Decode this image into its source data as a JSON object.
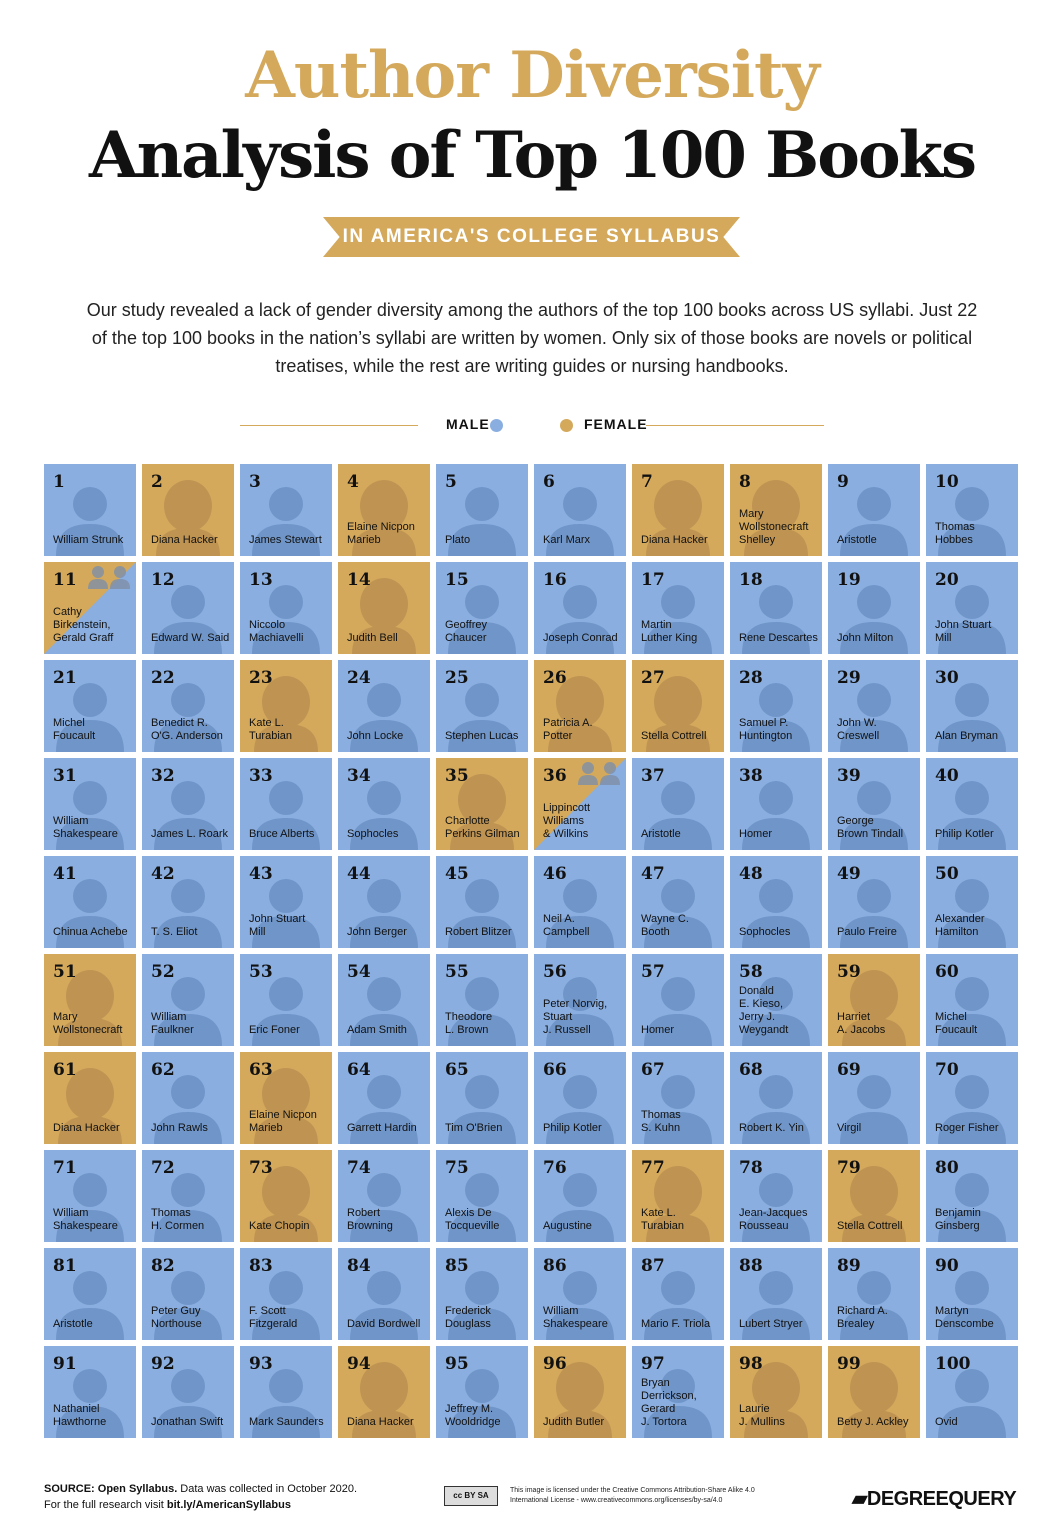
{
  "title_line1": "Author Diversity",
  "title_line2": "Analysis of Top 100 Books",
  "ribbon": "IN AMERICA'S COLLEGE SYLLABUS",
  "intro": "Our study revealed a lack of gender diversity among the authors of the top 100 books across US syllabi. Just 22 of the top 100 books in the nation’s syllabi are written by women. Only six of those books are novels or political treatises, while the rest are writing guides or nursing handbooks.",
  "legend": {
    "male": "MALE",
    "female": "FEMALE"
  },
  "colors": {
    "male": "#8aaee0",
    "female": "#d4a95c",
    "male_sil": "#7096c9",
    "female_sil": "#bf9452"
  },
  "books": [
    {
      "rank": "1",
      "author": "William Strunk",
      "gender": "male"
    },
    {
      "rank": "2",
      "author": "Diana Hacker",
      "gender": "female"
    },
    {
      "rank": "3",
      "author": "James Stewart",
      "gender": "male"
    },
    {
      "rank": "4",
      "author": "Elaine Nicpon\nMarieb",
      "gender": "female"
    },
    {
      "rank": "5",
      "author": "Plato",
      "gender": "male"
    },
    {
      "rank": "6",
      "author": "Karl Marx",
      "gender": "male"
    },
    {
      "rank": "7",
      "author": "Diana Hacker",
      "gender": "female"
    },
    {
      "rank": "8",
      "author": "Mary\nWollstonecraft\nShelley",
      "gender": "female"
    },
    {
      "rank": "9",
      "author": "Aristotle",
      "gender": "male"
    },
    {
      "rank": "10",
      "author": "Thomas\nHobbes",
      "gender": "male"
    },
    {
      "rank": "11",
      "author": "Cathy\nBirkenstein,\nGerald Graff",
      "gender": "mixed"
    },
    {
      "rank": "12",
      "author": "Edward W. Said",
      "gender": "male"
    },
    {
      "rank": "13",
      "author": "Niccolo\nMachiavelli",
      "gender": "male"
    },
    {
      "rank": "14",
      "author": "Judith Bell",
      "gender": "female"
    },
    {
      "rank": "15",
      "author": "Geoffrey\nChaucer",
      "gender": "male"
    },
    {
      "rank": "16",
      "author": "Joseph Conrad",
      "gender": "male"
    },
    {
      "rank": "17",
      "author": "Martin\nLuther King",
      "gender": "male"
    },
    {
      "rank": "18",
      "author": "Rene Descartes",
      "gender": "male"
    },
    {
      "rank": "19",
      "author": "John Milton",
      "gender": "male"
    },
    {
      "rank": "20",
      "author": "John Stuart\nMill",
      "gender": "male"
    },
    {
      "rank": "21",
      "author": "Michel\nFoucault",
      "gender": "male"
    },
    {
      "rank": "22",
      "author": "Benedict R.\nO'G. Anderson",
      "gender": "male"
    },
    {
      "rank": "23",
      "author": "Kate L.\nTurabian",
      "gender": "female"
    },
    {
      "rank": "24",
      "author": "John Locke",
      "gender": "male"
    },
    {
      "rank": "25",
      "author": "Stephen Lucas",
      "gender": "male"
    },
    {
      "rank": "26",
      "author": "Patricia A.\nPotter",
      "gender": "female"
    },
    {
      "rank": "27",
      "author": "Stella Cottrell",
      "gender": "female"
    },
    {
      "rank": "28",
      "author": "Samuel P.\nHuntington",
      "gender": "male"
    },
    {
      "rank": "29",
      "author": "John W.\nCreswell",
      "gender": "male"
    },
    {
      "rank": "30",
      "author": "Alan Bryman",
      "gender": "male"
    },
    {
      "rank": "31",
      "author": "William\nShakespeare",
      "gender": "male"
    },
    {
      "rank": "32",
      "author": "James L. Roark",
      "gender": "male"
    },
    {
      "rank": "33",
      "author": "Bruce Alberts",
      "gender": "male"
    },
    {
      "rank": "34",
      "author": "Sophocles",
      "gender": "male"
    },
    {
      "rank": "35",
      "author": "Charlotte\nPerkins Gilman",
      "gender": "female"
    },
    {
      "rank": "36",
      "author": "Lippincott\nWilliams\n& Wilkins",
      "gender": "mixed"
    },
    {
      "rank": "37",
      "author": "Aristotle",
      "gender": "male"
    },
    {
      "rank": "38",
      "author": "Homer",
      "gender": "male"
    },
    {
      "rank": "39",
      "author": "George\nBrown Tindall",
      "gender": "male"
    },
    {
      "rank": "40",
      "author": "Philip Kotler",
      "gender": "male"
    },
    {
      "rank": "41",
      "author": "Chinua Achebe",
      "gender": "male"
    },
    {
      "rank": "42",
      "author": "T. S. Eliot",
      "gender": "male"
    },
    {
      "rank": "43",
      "author": "John Stuart\nMill",
      "gender": "male"
    },
    {
      "rank": "44",
      "author": "John Berger",
      "gender": "male"
    },
    {
      "rank": "45",
      "author": "Robert Blitzer",
      "gender": "male"
    },
    {
      "rank": "46",
      "author": "Neil A.\nCampbell",
      "gender": "male"
    },
    {
      "rank": "47",
      "author": "Wayne C.\nBooth",
      "gender": "male"
    },
    {
      "rank": "48",
      "author": "Sophocles",
      "gender": "male"
    },
    {
      "rank": "49",
      "author": "Paulo Freire",
      "gender": "male"
    },
    {
      "rank": "50",
      "author": "Alexander\nHamilton",
      "gender": "male"
    },
    {
      "rank": "51",
      "author": "Mary\nWollstonecraft",
      "gender": "female"
    },
    {
      "rank": "52",
      "author": "William\nFaulkner",
      "gender": "male"
    },
    {
      "rank": "53",
      "author": "Eric Foner",
      "gender": "male"
    },
    {
      "rank": "54",
      "author": "Adam Smith",
      "gender": "male"
    },
    {
      "rank": "55",
      "author": "Theodore\nL. Brown",
      "gender": "male"
    },
    {
      "rank": "56",
      "author": "Peter Norvig,\nStuart\nJ. Russell",
      "gender": "male"
    },
    {
      "rank": "57",
      "author": "Homer",
      "gender": "male"
    },
    {
      "rank": "58",
      "author": "Donald\nE. Kieso,\nJerry J.\nWeygandt",
      "gender": "male"
    },
    {
      "rank": "59",
      "author": "Harriet\nA. Jacobs",
      "gender": "female"
    },
    {
      "rank": "60",
      "author": "Michel\nFoucault",
      "gender": "male"
    },
    {
      "rank": "61",
      "author": "Diana Hacker",
      "gender": "female"
    },
    {
      "rank": "62",
      "author": "John Rawls",
      "gender": "male"
    },
    {
      "rank": "63",
      "author": "Elaine Nicpon\nMarieb",
      "gender": "female"
    },
    {
      "rank": "64",
      "author": "Garrett Hardin",
      "gender": "male"
    },
    {
      "rank": "65",
      "author": "Tim O'Brien",
      "gender": "male"
    },
    {
      "rank": "66",
      "author": "Philip Kotler",
      "gender": "male"
    },
    {
      "rank": "67",
      "author": "Thomas\nS. Kuhn",
      "gender": "male"
    },
    {
      "rank": "68",
      "author": "Robert K. Yin",
      "gender": "male"
    },
    {
      "rank": "69",
      "author": "Virgil",
      "gender": "male"
    },
    {
      "rank": "70",
      "author": "Roger Fisher",
      "gender": "male"
    },
    {
      "rank": "71",
      "author": "William\nShakespeare",
      "gender": "male"
    },
    {
      "rank": "72",
      "author": "Thomas\nH. Cormen",
      "gender": "male"
    },
    {
      "rank": "73",
      "author": "Kate Chopin",
      "gender": "female"
    },
    {
      "rank": "74",
      "author": "Robert\nBrowning",
      "gender": "male"
    },
    {
      "rank": "75",
      "author": "Alexis De\nTocqueville",
      "gender": "male"
    },
    {
      "rank": "76",
      "author": "Augustine",
      "gender": "male"
    },
    {
      "rank": "77",
      "author": "Kate L.\nTurabian",
      "gender": "female"
    },
    {
      "rank": "78",
      "author": "Jean-Jacques\nRousseau",
      "gender": "male"
    },
    {
      "rank": "79",
      "author": "Stella Cottrell",
      "gender": "female"
    },
    {
      "rank": "80",
      "author": "Benjamin\nGinsberg",
      "gender": "male"
    },
    {
      "rank": "81",
      "author": "Aristotle",
      "gender": "male"
    },
    {
      "rank": "82",
      "author": "Peter Guy\nNorthouse",
      "gender": "male"
    },
    {
      "rank": "83",
      "author": "F. Scott\nFitzgerald",
      "gender": "male"
    },
    {
      "rank": "84",
      "author": "David Bordwell",
      "gender": "male"
    },
    {
      "rank": "85",
      "author": "Frederick\nDouglass",
      "gender": "male"
    },
    {
      "rank": "86",
      "author": "William\nShakespeare",
      "gender": "male"
    },
    {
      "rank": "87",
      "author": "Mario F. Triola",
      "gender": "male"
    },
    {
      "rank": "88",
      "author": "Lubert Stryer",
      "gender": "male"
    },
    {
      "rank": "89",
      "author": "Richard A.\nBrealey",
      "gender": "male"
    },
    {
      "rank": "90",
      "author": "Martyn\nDenscombe",
      "gender": "male"
    },
    {
      "rank": "91",
      "author": "Nathaniel\nHawthorne",
      "gender": "male"
    },
    {
      "rank": "92",
      "author": "Jonathan Swift",
      "gender": "male"
    },
    {
      "rank": "93",
      "author": "Mark Saunders",
      "gender": "male"
    },
    {
      "rank": "94",
      "author": "Diana Hacker",
      "gender": "female"
    },
    {
      "rank": "95",
      "author": "Jeffrey M.\nWooldridge",
      "gender": "male"
    },
    {
      "rank": "96",
      "author": "Judith Butler",
      "gender": "female"
    },
    {
      "rank": "97",
      "author": "Bryan\nDerrickson,\nGerard\nJ. Tortora",
      "gender": "male"
    },
    {
      "rank": "98",
      "author": "Laurie\nJ. Mullins",
      "gender": "female"
    },
    {
      "rank": "99",
      "author": "Betty J. Ackley",
      "gender": "female"
    },
    {
      "rank": "100",
      "author": "Ovid",
      "gender": "male"
    }
  ],
  "footer": {
    "source_label": "SOURCE: Open Syllabus.",
    "source_text": " Data was collected in October 2020.",
    "research_text": "For the full research visit ",
    "research_link": "bit.ly/AmericanSyllabus",
    "cc_badge": "cc BY SA",
    "license": "This image is licensed under the Creative Commons Attribution-Share Alike 4.0 International License - www.creativecommons.org/licenses/by-sa/4.0",
    "logo": "DEGREEQUERY"
  }
}
